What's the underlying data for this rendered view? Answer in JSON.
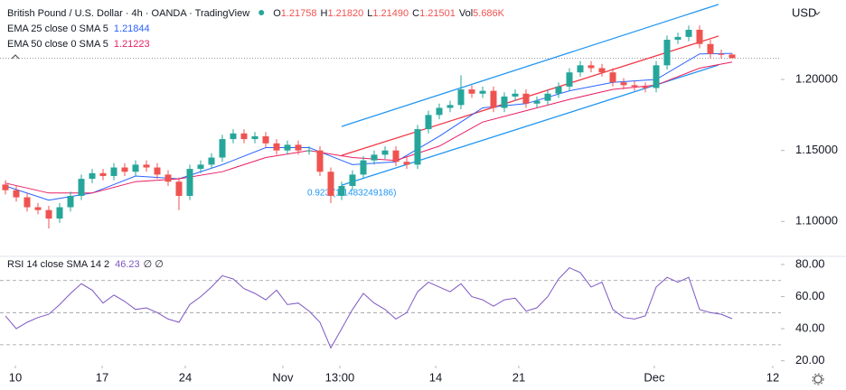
{
  "chart_data": [
    {
      "type": "candlestick",
      "title": "British Pound / U.S. Dollar · 4h · OANDA · TradingView",
      "currency": "USD",
      "ohlc_legend": [
        {
          "label": "O",
          "value": "1.21758"
        },
        {
          "label": "H",
          "value": "1.21820"
        },
        {
          "label": "L",
          "value": "1.21490"
        },
        {
          "label": "C",
          "value": "1.21501"
        },
        {
          "label": "Vol",
          "value": "5.686K"
        }
      ],
      "open": [
        1.126,
        1.122,
        1.117,
        1.11,
        1.108,
        1.102,
        1.11,
        1.118,
        1.13,
        1.134,
        1.132,
        1.138,
        1.135,
        1.14,
        1.138,
        1.133,
        1.128,
        1.118,
        1.137,
        1.14,
        1.145,
        1.158,
        1.162,
        1.158,
        1.16,
        1.155,
        1.15,
        1.154,
        1.15,
        1.15,
        1.135,
        1.118,
        1.125,
        1.133,
        1.143,
        1.147,
        1.15,
        1.142,
        1.14,
        1.165,
        1.175,
        1.18,
        1.182,
        1.193,
        1.19,
        1.192,
        1.18,
        1.188,
        1.19,
        1.183,
        1.185,
        1.19,
        1.195,
        1.205,
        1.21,
        1.208,
        1.205,
        1.198,
        1.196,
        1.195,
        1.194,
        1.21,
        1.228,
        1.23,
        1.235,
        1.225,
        1.218,
        1.21758
      ],
      "high": [
        1.129,
        1.125,
        1.12,
        1.113,
        1.111,
        1.113,
        1.121,
        1.133,
        1.137,
        1.137,
        1.141,
        1.141,
        1.143,
        1.143,
        1.141,
        1.136,
        1.131,
        1.14,
        1.143,
        1.148,
        1.161,
        1.165,
        1.165,
        1.163,
        1.163,
        1.158,
        1.157,
        1.157,
        1.153,
        1.153,
        1.138,
        1.128,
        1.136,
        1.146,
        1.15,
        1.153,
        1.153,
        1.145,
        1.168,
        1.178,
        1.183,
        1.185,
        1.203,
        1.196,
        1.195,
        1.195,
        1.191,
        1.193,
        1.193,
        1.188,
        1.193,
        1.198,
        1.208,
        1.213,
        1.213,
        1.211,
        1.208,
        1.201,
        1.199,
        1.198,
        1.213,
        1.231,
        1.233,
        1.238,
        1.238,
        1.228,
        1.221,
        1.2182
      ],
      "low": [
        1.119,
        1.114,
        1.107,
        1.105,
        1.095,
        1.099,
        1.107,
        1.115,
        1.127,
        1.129,
        1.129,
        1.132,
        1.132,
        1.135,
        1.13,
        1.125,
        1.108,
        1.115,
        1.134,
        1.137,
        1.142,
        1.155,
        1.155,
        1.155,
        1.152,
        1.147,
        1.147,
        1.147,
        1.147,
        1.132,
        1.113,
        1.115,
        1.122,
        1.13,
        1.14,
        1.144,
        1.139,
        1.137,
        1.137,
        1.162,
        1.172,
        1.177,
        1.179,
        1.187,
        1.187,
        1.177,
        1.177,
        1.185,
        1.18,
        1.18,
        1.182,
        1.187,
        1.192,
        1.202,
        1.205,
        1.202,
        1.195,
        1.193,
        1.192,
        1.191,
        1.191,
        1.207,
        1.225,
        1.227,
        1.222,
        1.215,
        1.2146,
        1.2149
      ],
      "close": [
        1.122,
        1.117,
        1.11,
        1.108,
        1.102,
        1.11,
        1.118,
        1.13,
        1.134,
        1.132,
        1.138,
        1.135,
        1.14,
        1.138,
        1.133,
        1.128,
        1.118,
        1.137,
        1.14,
        1.145,
        1.158,
        1.162,
        1.158,
        1.16,
        1.155,
        1.15,
        1.154,
        1.15,
        1.15,
        1.135,
        1.118,
        1.125,
        1.133,
        1.143,
        1.147,
        1.15,
        1.142,
        1.14,
        1.165,
        1.175,
        1.18,
        1.182,
        1.193,
        1.19,
        1.192,
        1.18,
        1.188,
        1.19,
        1.183,
        1.185,
        1.19,
        1.195,
        1.205,
        1.21,
        1.208,
        1.205,
        1.198,
        1.196,
        1.195,
        1.194,
        1.21,
        1.228,
        1.23,
        1.235,
        1.225,
        1.218,
        1.2176,
        1.21501
      ],
      "up_color": "#26a69a",
      "down_color": "#ef5350",
      "xlim": [
        -0.5,
        71.5
      ],
      "ylim": [
        1.076,
        1.256
      ],
      "yticks": [
        {
          "value": 1.1,
          "label": "1.10000"
        },
        {
          "value": 1.15,
          "label": "1.15000"
        },
        {
          "value": 1.2,
          "label": "1.20000"
        }
      ],
      "series": [
        {
          "name": "EMA 25 close 0 SMA 5",
          "value_label": "1.21844",
          "color": "#2962ff",
          "x": [
            0,
            4,
            8,
            12,
            16,
            20,
            24,
            28,
            32,
            36,
            40,
            44,
            48,
            52,
            56,
            60,
            64,
            67
          ],
          "values": [
            1.125,
            1.115,
            1.12,
            1.132,
            1.13,
            1.14,
            1.152,
            1.152,
            1.14,
            1.142,
            1.16,
            1.18,
            1.183,
            1.192,
            1.198,
            1.2,
            1.218,
            1.21844
          ]
        },
        {
          "name": "EMA 50 close 0 SMA 5",
          "value_label": "1.21223",
          "color": "#e91e63",
          "x": [
            0,
            4,
            8,
            12,
            16,
            20,
            24,
            28,
            32,
            36,
            40,
            44,
            48,
            52,
            56,
            60,
            64,
            67
          ],
          "values": [
            1.127,
            1.12,
            1.12,
            1.128,
            1.13,
            1.135,
            1.145,
            1.15,
            1.145,
            1.143,
            1.153,
            1.17,
            1.178,
            1.186,
            1.193,
            1.196,
            1.208,
            1.21223
          ]
        }
      ],
      "channel": {
        "x": [
          31,
          65.75
        ],
        "upper": [
          1.1669,
          1.2529
        ],
        "middle": [
          1.1465,
          1.2306
        ],
        "lower": [
          1.1255,
          1.2102
        ],
        "edge_color": "#2196f3",
        "middle_color": "#f23645"
      },
      "annotation": "0.923 (1.1483249186)"
    },
    {
      "type": "line",
      "title": "RSI 14 close SMA 14 2",
      "value_label": "46.23",
      "suffix": "∅ ∅",
      "color": "#7e57c2",
      "values": [
        48,
        40,
        44,
        47,
        49,
        55,
        62,
        68,
        64,
        56,
        61,
        57,
        52,
        53,
        50,
        46,
        44,
        55,
        60,
        66,
        73,
        71,
        65,
        62,
        58,
        64,
        55,
        56,
        51,
        44,
        28,
        40,
        52,
        62,
        56,
        52,
        46,
        50,
        63,
        69,
        66,
        63,
        68,
        60,
        58,
        54,
        58,
        59,
        51,
        53,
        60,
        71,
        78,
        75,
        66,
        69,
        52,
        47,
        46,
        48,
        66,
        72,
        69,
        72,
        52,
        50,
        49,
        46.23
      ],
      "xlim": [
        -0.5,
        71.5
      ],
      "ylim": [
        17,
        84.5
      ],
      "yticks": [
        {
          "value": 20,
          "label": "20.00"
        },
        {
          "value": 40,
          "label": "40.00"
        },
        {
          "value": 60,
          "label": "60.00"
        },
        {
          "value": 80,
          "label": "80.00"
        }
      ],
      "levels": [
        30,
        50,
        70
      ],
      "xticks": [
        {
          "value": 0.92,
          "label": "10"
        },
        {
          "value": 8.92,
          "label": "17"
        },
        {
          "value": 16.58,
          "label": "24"
        },
        {
          "value": 25.58,
          "label": "Nov"
        },
        {
          "value": 30.83,
          "label": "13:00"
        },
        {
          "value": 39.67,
          "label": "14"
        },
        {
          "value": 47.33,
          "label": "21"
        },
        {
          "value": 59.83,
          "label": "Dec"
        },
        {
          "value": 70.75,
          "label": "12"
        }
      ]
    }
  ]
}
